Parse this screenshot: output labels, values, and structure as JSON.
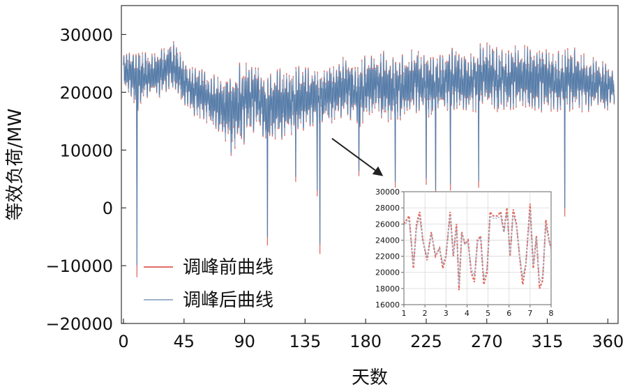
{
  "chart_data": [
    {
      "type": "line",
      "xlabel": "天数",
      "ylabel": "等效负荷/MW",
      "xlim": [
        0,
        365
      ],
      "ylim": [
        -20000,
        35000
      ],
      "x_ticks": [
        "0",
        "45",
        "90",
        "135",
        "180",
        "225",
        "270",
        "315",
        "360"
      ],
      "y_ticks": [
        "−20000",
        "−10000",
        "0",
        "10000",
        "20000",
        "30000"
      ],
      "legend_position": "lower-left",
      "series": [
        {
          "name": "调峰前曲线",
          "color": "#e06e63"
        },
        {
          "name": "调峰后曲线",
          "color": "#9db3cc"
        }
      ],
      "x_days": [
        0,
        5,
        10,
        15,
        20,
        25,
        30,
        35,
        40,
        45,
        50,
        55,
        60,
        65,
        70,
        75,
        80,
        85,
        90,
        95,
        100,
        105,
        110,
        115,
        120,
        125,
        130,
        135,
        140,
        145,
        150,
        155,
        160,
        165,
        170,
        175,
        180,
        185,
        190,
        195,
        200,
        205,
        210,
        215,
        220,
        225,
        230,
        235,
        240,
        245,
        250,
        255,
        260,
        265,
        270,
        275,
        280,
        285,
        290,
        295,
        300,
        305,
        310,
        315,
        320,
        325,
        330,
        335,
        340,
        345,
        350,
        355,
        360,
        365
      ],
      "upper_envelope": [
        27000,
        27500,
        28000,
        27500,
        27000,
        27500,
        28000,
        29500,
        28000,
        26000,
        25000,
        24000,
        24500,
        23500,
        23000,
        23000,
        24000,
        25000,
        25500,
        27000,
        25000,
        23000,
        23500,
        24000,
        24500,
        24500,
        25000,
        24500,
        24000,
        24000,
        24500,
        25000,
        26000,
        26500,
        26000,
        25500,
        26500,
        27000,
        27500,
        27000,
        26000,
        26500,
        27000,
        27500,
        27500,
        27000,
        26500,
        27000,
        27500,
        28000,
        27500,
        27000,
        28000,
        28500,
        29000,
        28500,
        28000,
        27500,
        28000,
        28500,
        28000,
        27500,
        28500,
        28500,
        27500,
        27000,
        28500,
        28000,
        27000,
        26500,
        26000,
        25500,
        25000,
        24500
      ],
      "lower_envelope": [
        20000,
        19000,
        16000,
        18000,
        18500,
        19000,
        19500,
        20000,
        19000,
        17500,
        16000,
        15500,
        15000,
        14000,
        12500,
        11000,
        10500,
        10000,
        11000,
        11500,
        12000,
        11000,
        11000,
        11500,
        12000,
        12500,
        13000,
        13500,
        14000,
        14500,
        14000,
        14500,
        15000,
        15500,
        14500,
        14000,
        14500,
        15500,
        15500,
        15000,
        14500,
        15000,
        15500,
        16000,
        16000,
        15500,
        15000,
        15500,
        16000,
        16500,
        16500,
        16000,
        16500,
        16500,
        17000,
        16500,
        16000,
        16500,
        17000,
        17000,
        16500,
        16000,
        16500,
        16500,
        16000,
        16000,
        16500,
        17000,
        16500,
        16500,
        17000,
        17000,
        16500,
        17500
      ],
      "downward_spikes": [
        {
          "day": 10,
          "value": -12000
        },
        {
          "day": 80,
          "value": 9000
        },
        {
          "day": 107,
          "value": -6500
        },
        {
          "day": 128,
          "value": 4500
        },
        {
          "day": 144,
          "value": 2000
        },
        {
          "day": 146,
          "value": -8000
        },
        {
          "day": 175,
          "value": 5500
        },
        {
          "day": 202,
          "value": 3500
        },
        {
          "day": 225,
          "value": 4000
        },
        {
          "day": 232,
          "value": 2000
        },
        {
          "day": 243,
          "value": 3000
        },
        {
          "day": 264,
          "value": 3500
        },
        {
          "day": 328,
          "value": -1500
        }
      ],
      "annotation": {
        "from_day": 155,
        "from_value": 12000,
        "to_day": 193,
        "to_value": 5500,
        "meaning": "zoom-in to inset"
      }
    },
    {
      "type": "line",
      "inset": true,
      "xlim": [
        1,
        8
      ],
      "ylim": [
        16000,
        30000
      ],
      "x_ticks": [
        "1",
        "2",
        "3",
        "4",
        "5",
        "6",
        "7",
        "8"
      ],
      "y_ticks": [
        "16000",
        "18000",
        "20000",
        "22000",
        "24000",
        "26000",
        "28000",
        "30000"
      ],
      "series": [
        {
          "name": "调峰前曲线",
          "color": "#e06e63",
          "x": [
            1.0,
            1.25,
            1.45,
            1.6,
            1.75,
            1.9,
            2.1,
            2.3,
            2.5,
            2.7,
            2.85,
            3.0,
            3.2,
            3.35,
            3.5,
            3.62,
            3.75,
            3.9,
            4.05,
            4.2,
            4.35,
            4.5,
            4.65,
            4.8,
            4.95,
            5.1,
            5.25,
            5.45,
            5.6,
            5.75,
            5.9,
            6.05,
            6.2,
            6.35,
            6.5,
            6.65,
            6.8,
            7.0,
            7.15,
            7.3,
            7.45,
            7.6,
            7.75,
            7.9,
            8.0
          ],
          "y": [
            26000,
            27000,
            20500,
            26000,
            27500,
            24000,
            21500,
            25000,
            22000,
            23000,
            20500,
            22000,
            27500,
            22000,
            26000,
            17800,
            25000,
            23500,
            24000,
            20000,
            18800,
            24000,
            24500,
            18500,
            20000,
            27500,
            27000,
            27000,
            27500,
            25000,
            28000,
            22000,
            27800,
            26000,
            22000,
            18500,
            21000,
            28500,
            20500,
            24500,
            18000,
            19000,
            26500,
            24000,
            23000
          ]
        },
        {
          "name": "调峰后曲线",
          "color": "#9db3cc",
          "x": [
            1.0,
            1.25,
            1.45,
            1.6,
            1.75,
            1.9,
            2.1,
            2.3,
            2.5,
            2.7,
            2.85,
            3.0,
            3.2,
            3.35,
            3.5,
            3.62,
            3.75,
            3.9,
            4.05,
            4.2,
            4.35,
            4.5,
            4.65,
            4.8,
            4.95,
            5.1,
            5.25,
            5.45,
            5.6,
            5.75,
            5.9,
            6.05,
            6.2,
            6.35,
            6.5,
            6.65,
            6.8,
            7.0,
            7.15,
            7.3,
            7.45,
            7.6,
            7.75,
            7.9,
            8.0
          ],
          "y": [
            25800,
            26500,
            21000,
            25500,
            26800,
            24000,
            21800,
            24800,
            22200,
            23000,
            21000,
            22200,
            27000,
            22200,
            25500,
            18500,
            24800,
            23500,
            23800,
            20500,
            19500,
            23800,
            24200,
            19200,
            20500,
            27000,
            26700,
            26700,
            27000,
            25000,
            27300,
            22200,
            27100,
            25800,
            22200,
            19300,
            21200,
            27600,
            21000,
            24300,
            18800,
            19600,
            25900,
            23800,
            23000
          ]
        }
      ]
    }
  ]
}
